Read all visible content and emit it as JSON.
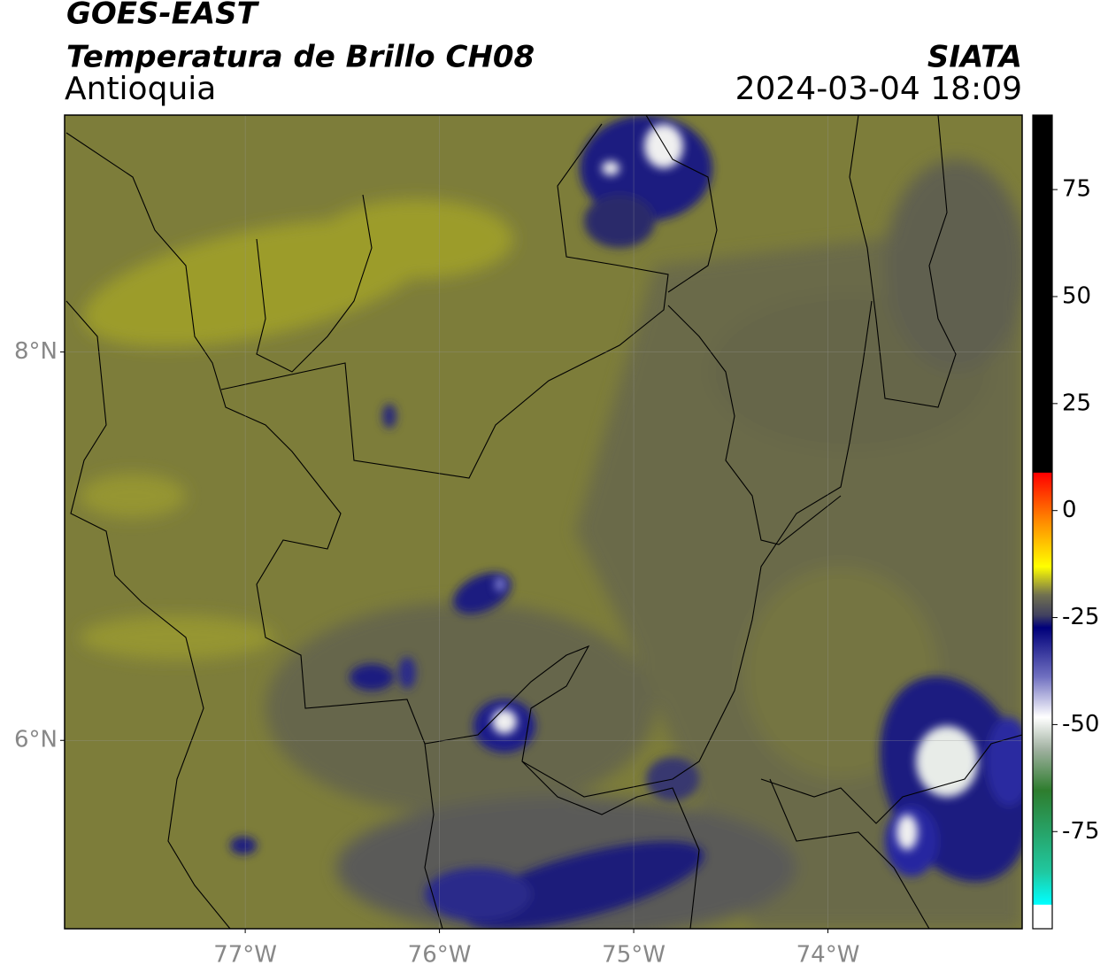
{
  "header": {
    "title": "GOES-EAST",
    "subtitle": "Temperatura de Brillo CH08",
    "region": "Antioquia",
    "source": "SIATA",
    "datetime": "2024-03-04 18:09"
  },
  "map": {
    "lonlim": [
      -77.93,
      -73.0
    ],
    "latlim": [
      5.03,
      9.22
    ],
    "lon_ticks": [
      {
        "value": -77,
        "label": "77°W"
      },
      {
        "value": -76,
        "label": "76°W"
      },
      {
        "value": -75,
        "label": "75°W"
      },
      {
        "value": -74,
        "label": "74°W"
      }
    ],
    "lat_ticks": [
      {
        "value": 8,
        "label": "8°N"
      },
      {
        "value": 6,
        "label": "6°N"
      }
    ],
    "grid": true
  },
  "colorbar": {
    "lim": [
      -97.7,
      92.4
    ],
    "ticks": [
      75,
      50,
      25,
      0,
      -25,
      -50,
      -75
    ]
  }
}
